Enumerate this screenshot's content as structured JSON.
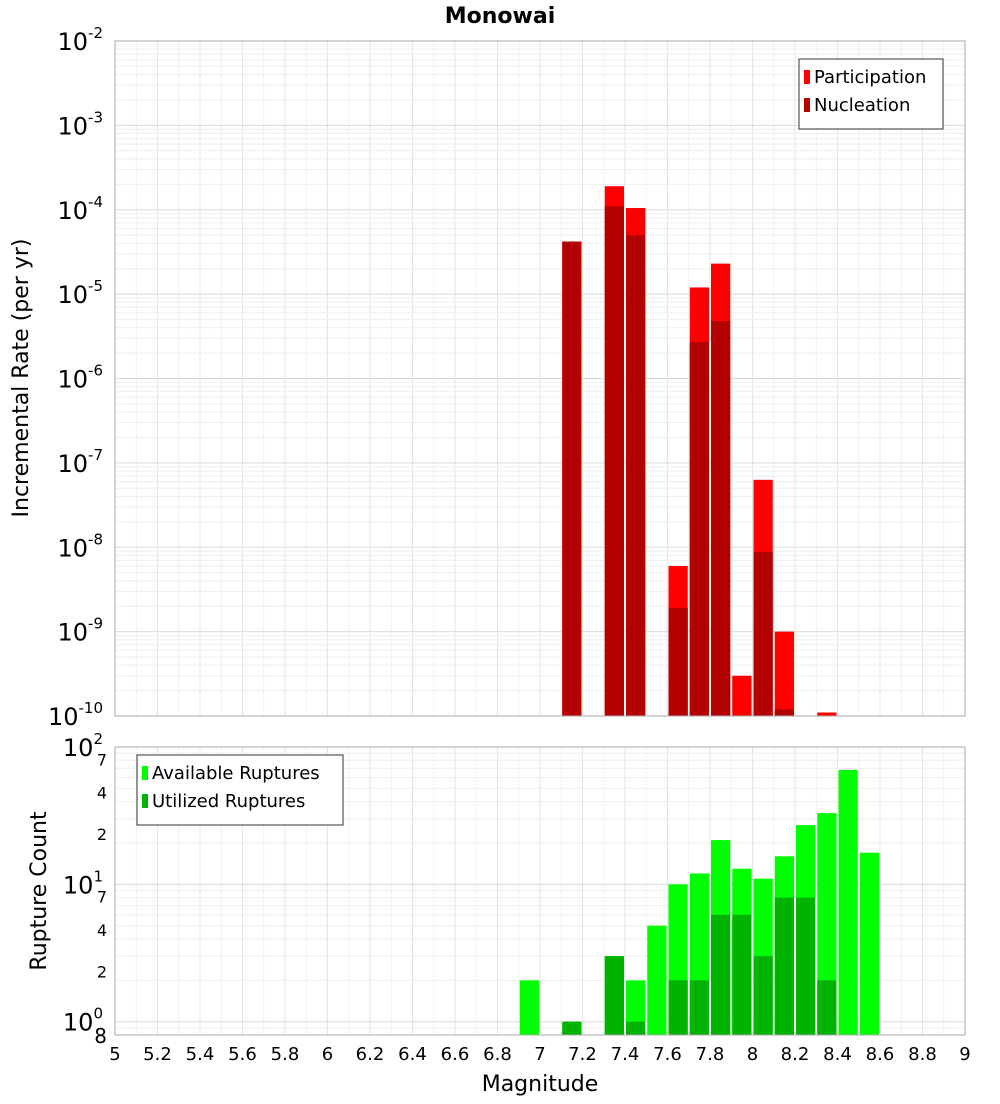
{
  "chart_data": [
    {
      "type": "bar",
      "title": "Monowai",
      "xlabel": "",
      "ylabel": "Incremental Rate (per yr)",
      "yscale": "log",
      "ylim": [
        1e-10,
        0.01
      ],
      "xlim": [
        5,
        9
      ],
      "bar_width": 0.1,
      "y_ticks": [
        {
          "base": "10",
          "exp": "-10"
        },
        {
          "base": "10",
          "exp": "-9"
        },
        {
          "base": "10",
          "exp": "-8"
        },
        {
          "base": "10",
          "exp": "-7"
        },
        {
          "base": "10",
          "exp": "-6"
        },
        {
          "base": "10",
          "exp": "-5"
        },
        {
          "base": "10",
          "exp": "-4"
        },
        {
          "base": "10",
          "exp": "-3"
        },
        {
          "base": "10",
          "exp": "-2"
        }
      ],
      "legend": {
        "position": "top-right",
        "entries": [
          "Participation",
          "Nucleation"
        ]
      },
      "series": [
        {
          "name": "Participation",
          "color": "#ff0000",
          "x": [
            7.15,
            7.35,
            7.45,
            7.65,
            7.75,
            7.85,
            7.95,
            8.05,
            8.15,
            8.35
          ],
          "values": [
            4.2e-05,
            0.00019,
            0.000105,
            6e-09,
            1.2e-05,
            2.3e-05,
            3e-10,
            6.3e-08,
            1e-09,
            1.1e-10
          ]
        },
        {
          "name": "Nucleation",
          "color": "#b30000",
          "x": [
            7.15,
            7.35,
            7.45,
            7.65,
            7.75,
            7.85,
            8.05,
            8.15
          ],
          "values": [
            4.2e-05,
            0.00011,
            5e-05,
            1.9e-09,
            2.7e-06,
            4.8e-06,
            8.8e-09,
            1.2e-10
          ]
        }
      ]
    },
    {
      "type": "bar",
      "title": "",
      "xlabel": "Magnitude",
      "ylabel": "Rupture Count",
      "yscale": "log",
      "ylim": [
        0.8,
        100
      ],
      "xlim": [
        5,
        9
      ],
      "bar_width": 0.1,
      "x_ticks": [
        "5",
        "5.2",
        "5.4",
        "5.6",
        "5.8",
        "6",
        "6.2",
        "6.4",
        "6.6",
        "6.8",
        "7",
        "7.2",
        "7.4",
        "7.6",
        "7.8",
        "8",
        "8.2",
        "8.4",
        "8.6",
        "8.8",
        "9"
      ],
      "y_tick_labels": {
        "major": [
          {
            "base": "10",
            "exp": "0"
          },
          {
            "base": "10",
            "exp": "1"
          },
          {
            "base": "10",
            "exp": "2"
          }
        ],
        "minor": [
          {
            "label": "8",
            "value": 0.8
          },
          {
            "label": "2",
            "value": 2
          },
          {
            "label": "4",
            "value": 4
          },
          {
            "label": "7",
            "value": 7
          },
          {
            "label": "2",
            "value": 20
          },
          {
            "label": "4",
            "value": 40
          },
          {
            "label": "7",
            "value": 70
          }
        ]
      },
      "legend": {
        "position": "top-left",
        "entries": [
          "Available Ruptures",
          "Utilized Ruptures"
        ]
      },
      "series": [
        {
          "name": "Available Ruptures",
          "color": "#00ff00",
          "x": [
            6.95,
            7.15,
            7.35,
            7.45,
            7.55,
            7.65,
            7.75,
            7.85,
            7.95,
            8.05,
            8.15,
            8.25,
            8.35,
            8.45,
            8.55
          ],
          "values": [
            2,
            1,
            3,
            2,
            5,
            10,
            12,
            21,
            13,
            11,
            16,
            27,
            33,
            68,
            17
          ]
        },
        {
          "name": "Utilized Ruptures",
          "color": "#00b300",
          "x": [
            7.15,
            7.35,
            7.45,
            7.65,
            7.75,
            7.85,
            7.95,
            8.05,
            8.15,
            8.25,
            8.35
          ],
          "values": [
            1,
            3,
            1,
            2,
            2,
            6,
            6,
            3,
            8,
            8,
            2
          ]
        }
      ]
    }
  ]
}
